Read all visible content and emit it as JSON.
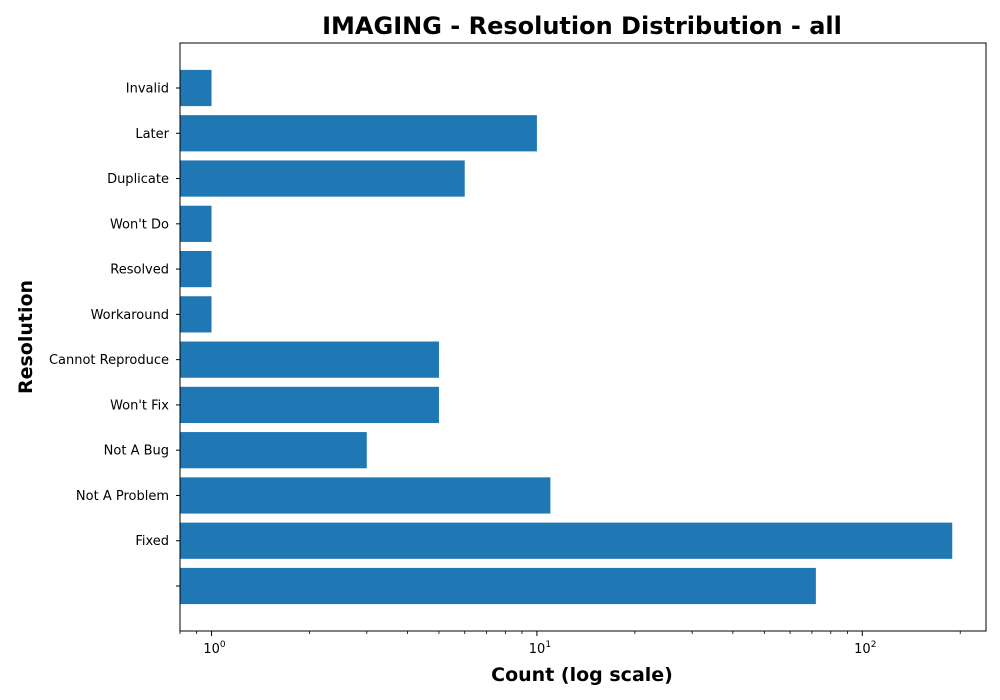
{
  "chart_data": {
    "type": "bar",
    "orientation": "horizontal",
    "title": "IMAGING - Resolution Distribution - all",
    "xlabel": "Count (log scale)",
    "ylabel": "Resolution",
    "x_scale": "log",
    "xlim": [
      0.8,
      240
    ],
    "x_ticks": [
      {
        "base": "10",
        "exponent": "0",
        "value": 1
      },
      {
        "base": "10",
        "exponent": "1",
        "value": 10
      },
      {
        "base": "10",
        "exponent": "2",
        "value": 100
      }
    ],
    "categories": [
      "",
      "Fixed",
      "Not A Problem",
      "Not A Bug",
      "Won't Fix",
      "Cannot Reproduce",
      "Workaround",
      "Resolved",
      "Won't Do",
      "Duplicate",
      "Later",
      "Invalid"
    ],
    "values": [
      72,
      189,
      11,
      3,
      5,
      5,
      1,
      1,
      1,
      6,
      10,
      1
    ],
    "bar_color": "#1f77b4",
    "grid": false,
    "legend": "none"
  }
}
